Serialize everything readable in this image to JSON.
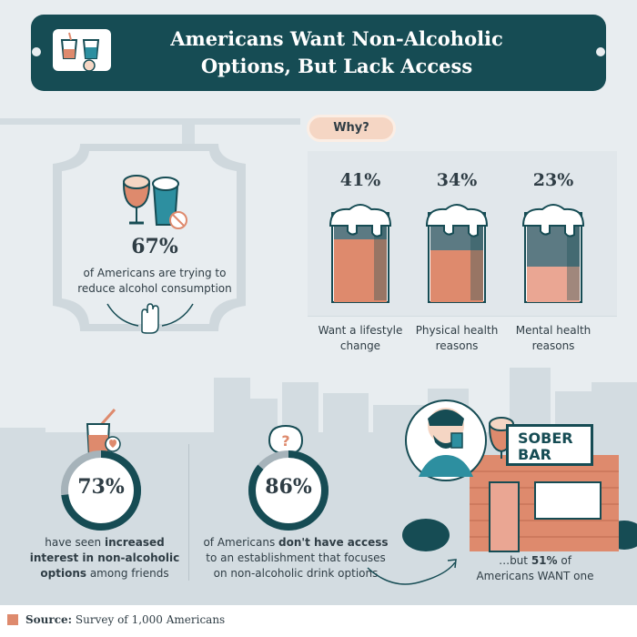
{
  "header": {
    "title": "Americans Want Non-Alcoholic Options, But Lack Access",
    "icon": "cheers-glasses-icon"
  },
  "sign": {
    "percent": "67%",
    "text": "of Americans are trying to reduce alcohol consumption",
    "icons": [
      "wine-glass-icon",
      "beer-glass-icon",
      "no-sign-icon",
      "hand-stop-icon"
    ]
  },
  "why": {
    "label": "Why?",
    "reasons": [
      {
        "percent": "41%",
        "value": 41,
        "label": "Want a lifestyle change"
      },
      {
        "percent": "34%",
        "value": 34,
        "label": "Physical health reasons"
      },
      {
        "percent": "23%",
        "value": 23,
        "label": "Mental health reasons"
      }
    ]
  },
  "stats": {
    "friends": {
      "percent": "73%",
      "value": 73,
      "text_pre": "have seen ",
      "text_bold": "increased interest in non-alcoholic options",
      "text_post": " among friends"
    },
    "access": {
      "percent": "86%",
      "value": 86,
      "text_pre": "of Americans ",
      "text_bold": "don't have access",
      "text_post": " to an establishment that focuses on non-alcoholic drink options"
    },
    "want": {
      "text_pre": "…but ",
      "text_bold": "51%",
      "text_post": " of Americans WANT one"
    }
  },
  "bar": {
    "sign_line1": "SOBER",
    "sign_line2": "BAR"
  },
  "footer": {
    "source_label": "Source:",
    "source_text": "Survey of 1,000 Americans"
  },
  "colors": {
    "navy": "#164c54",
    "salmon": "#de8a6d",
    "salmon_light": "#eaa693",
    "peach": "#f5d6c4",
    "background": "#e8edf0",
    "city_gray": "#cfd8dd"
  }
}
